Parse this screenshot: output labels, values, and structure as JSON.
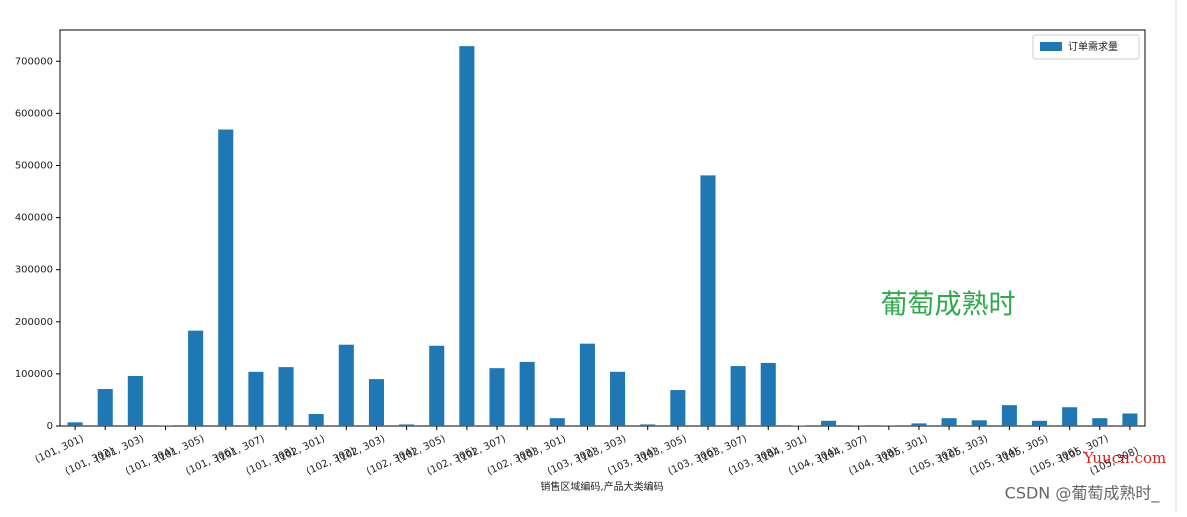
{
  "chart_data": {
    "type": "bar",
    "xlabel": "销售区域编码,产品大类编码",
    "categories": [
      "(101, 301)",
      "(101, 302)",
      "(101, 303)",
      "(101, 304)",
      "(101, 305)",
      "(101, 306)",
      "(101, 307)",
      "(101, 308)",
      "(102, 301)",
      "(102, 302)",
      "(102, 303)",
      "(102, 304)",
      "(102, 305)",
      "(102, 306)",
      "(102, 307)",
      "(102, 308)",
      "(103, 301)",
      "(103, 302)",
      "(103, 303)",
      "(103, 304)",
      "(103, 305)",
      "(103, 306)",
      "(103, 307)",
      "(103, 308)",
      "(104, 301)",
      "(104, 304)",
      "(104, 307)",
      "(104, 308)",
      "(105, 301)",
      "(105, 302)",
      "(105, 303)",
      "(105, 304)",
      "(105, 305)",
      "(105, 306)",
      "(105, 307)",
      "(105, 308)"
    ],
    "series": [
      {
        "name": "订单需求量",
        "color": "#1f77b4",
        "values": [
          7000,
          71000,
          96000,
          500,
          183000,
          569000,
          104000,
          113000,
          23000,
          156000,
          90000,
          3000,
          154000,
          729000,
          111000,
          123000,
          15000,
          158000,
          104000,
          3000,
          69000,
          481000,
          115000,
          121000,
          1000,
          10000,
          500,
          500,
          5000,
          15000,
          11000,
          40000,
          10000,
          36000,
          15000,
          24000
        ]
      }
    ],
    "ylim": [
      0,
      760000
    ],
    "yticks": [
      0,
      100000,
      200000,
      300000,
      400000,
      500000,
      600000,
      700000
    ],
    "legend": "upper right"
  },
  "watermarks": {
    "center": "葡萄成熟时",
    "site": "Yuucn.com",
    "footer": "CSDN @葡萄成熟时_"
  }
}
